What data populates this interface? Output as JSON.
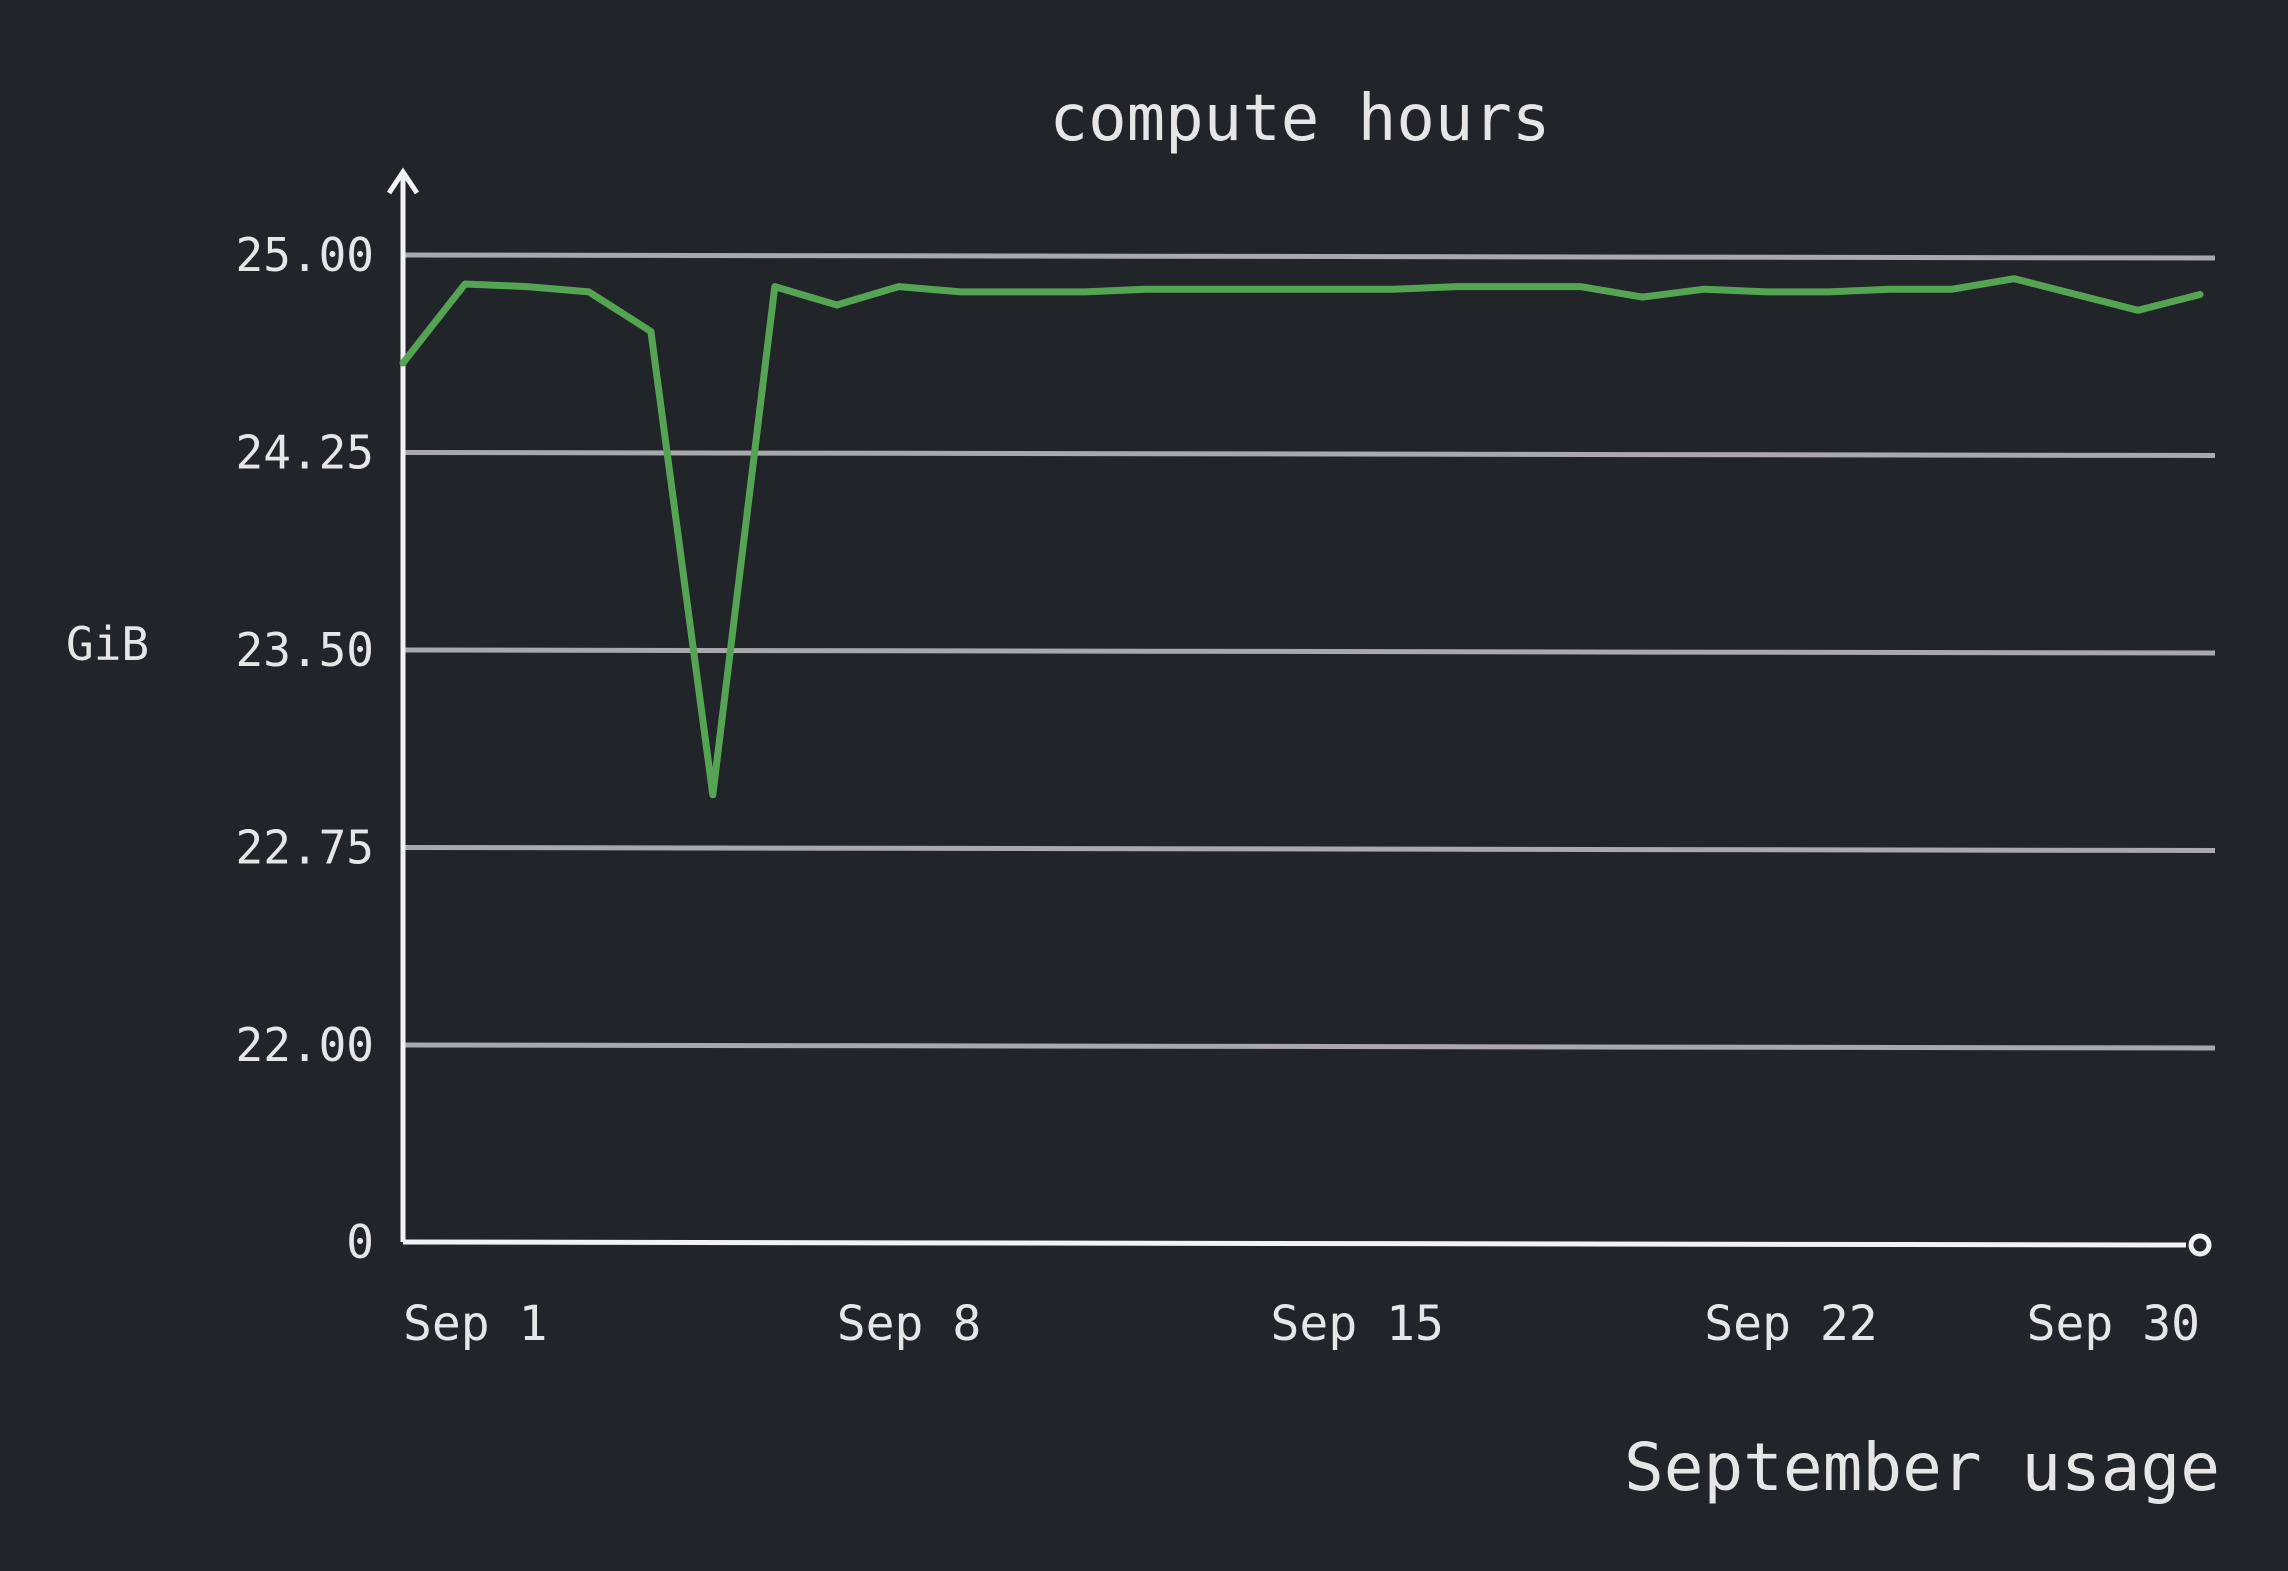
{
  "chart_data": {
    "type": "line",
    "title": "compute hours",
    "ylabel": "GiB",
    "xlabel": "September usage",
    "y_ticks": [
      {
        "label": "0",
        "value": 0
      },
      {
        "label": "22.00",
        "value": 22.0
      },
      {
        "label": "22.75",
        "value": 22.75
      },
      {
        "label": "23.50",
        "value": 23.5
      },
      {
        "label": "24.25",
        "value": 24.25
      },
      {
        "label": "25.00",
        "value": 25.0
      }
    ],
    "x_ticks": [
      {
        "label": "Sep 1",
        "day": 1
      },
      {
        "label": "Sep 8",
        "day": 8
      },
      {
        "label": "Sep 15",
        "day": 15
      },
      {
        "label": "Sep 22",
        "day": 22
      },
      {
        "label": "Sep 30",
        "day": 30
      }
    ],
    "x_range": [
      1,
      30
    ],
    "grid": true,
    "line_color": "#55a453",
    "series": [
      {
        "x": [
          1,
          2,
          3,
          4,
          5,
          6,
          7,
          8,
          9,
          10,
          11,
          12,
          13,
          14,
          15,
          16,
          17,
          18,
          19,
          20,
          21,
          22,
          23,
          24,
          25,
          26,
          27,
          28,
          29,
          30
        ],
        "values": [
          24.59,
          24.89,
          24.88,
          24.86,
          24.71,
          22.95,
          24.88,
          24.81,
          24.88,
          24.86,
          24.86,
          24.86,
          24.87,
          24.87,
          24.87,
          24.87,
          24.87,
          24.88,
          24.88,
          24.88,
          24.84,
          24.87,
          24.86,
          24.86,
          24.87,
          24.87,
          24.91,
          24.85,
          24.79,
          24.85
        ]
      }
    ]
  }
}
